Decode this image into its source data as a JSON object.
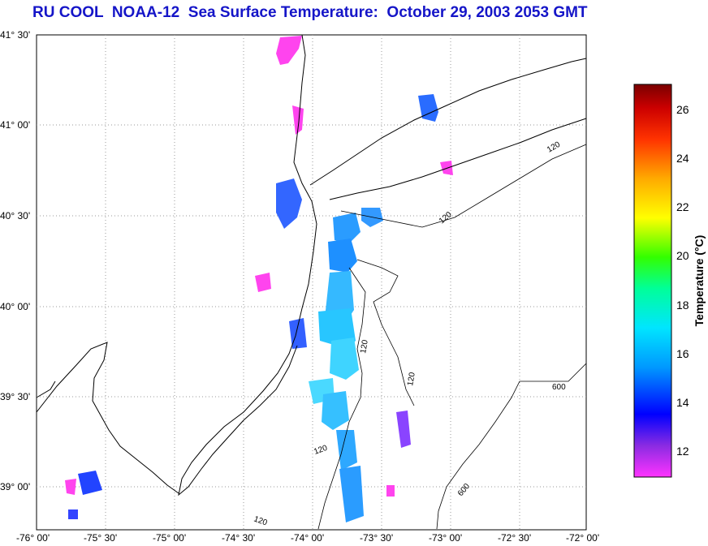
{
  "title": "RU COOL  NOAA-12  Sea Surface Temperature:  October 29, 2003 2053 GMT",
  "lat_labels": [
    "41° 30'",
    "41° 00'",
    "40° 30'",
    "40° 00'",
    "39° 30'",
    "39° 00'"
  ],
  "lon_labels": [
    "-76° 00'",
    "-75° 30'",
    "-75° 00'",
    "-74° 30'",
    "-74° 00'",
    "-73° 30'",
    "-73° 00'",
    "-72° 30'",
    "-72° 00'"
  ],
  "colorbar": {
    "label": "Temperature (°C)",
    "ticks": [
      "26",
      "24",
      "22",
      "20",
      "18",
      "16",
      "14",
      "12"
    ],
    "min": 11,
    "max": 27
  },
  "isobaths": [
    "120",
    "120",
    "120",
    "120",
    "120",
    "120",
    "600",
    "600"
  ],
  "colors": {
    "title": "#1515c8",
    "grid": "#9a9a9a"
  }
}
